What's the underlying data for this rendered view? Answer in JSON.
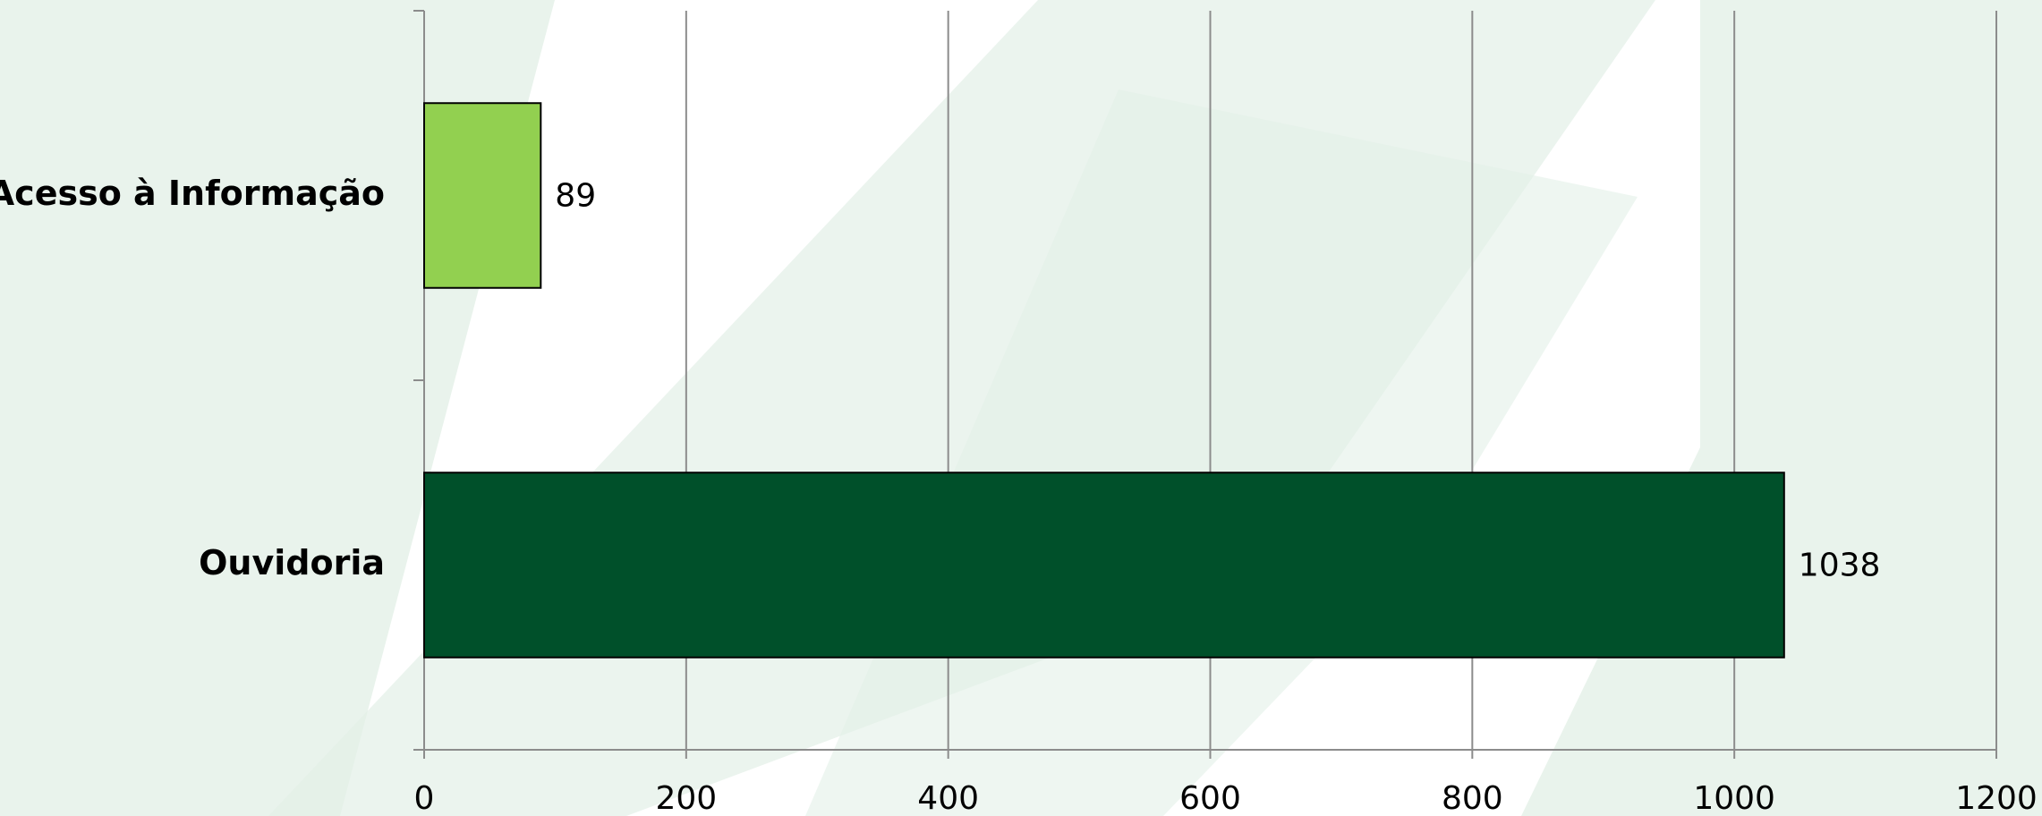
{
  "chart_data": {
    "type": "bar",
    "orientation": "horizontal",
    "categories": [
      "Acesso à Informação",
      "Ouvidoria"
    ],
    "values": [
      89,
      1038
    ],
    "colors": [
      "#92d050",
      "#00502a"
    ],
    "xlim": [
      0,
      1200
    ],
    "xticks": [
      0,
      200,
      400,
      600,
      800,
      1000,
      1200
    ],
    "grid": true
  }
}
